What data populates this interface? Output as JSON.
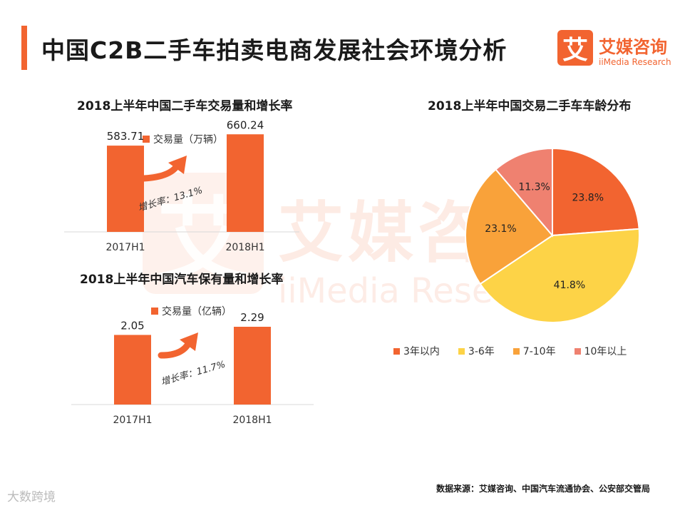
{
  "header": {
    "title": "中国C2B二手车拍卖电商发展社会环境分析",
    "logo_mark": "艾",
    "logo_cn": "艾媒咨询",
    "logo_en": "iiMedia Research"
  },
  "watermark": {
    "mark": "艾",
    "cn": "艾媒咨",
    "en": "iiMedia Research"
  },
  "footer": {
    "source": "数据来源：艾媒咨询、中国汽车流通协会、公安部交管局",
    "brand": "大数跨境"
  },
  "colors": {
    "accent": "#f26430",
    "yellow": "#fdd347",
    "amber": "#f9a23a",
    "salmon": "#ef8170"
  },
  "chart_data": [
    {
      "type": "bar",
      "title": "2018上半年中国二手车交易量和增长率",
      "legend": "交易量（万辆）",
      "categories": [
        "2017H1",
        "2018H1"
      ],
      "values": [
        583.71,
        660.24
      ],
      "value_labels": [
        "583.71",
        "660.24"
      ],
      "annotation": "增长率：13.1%",
      "ylim": [
        0,
        700
      ]
    },
    {
      "type": "bar",
      "title": "2018上半年中国汽车保有量和增长率",
      "legend": "交易量（亿辆）",
      "categories": [
        "2017H1",
        "2018H1"
      ],
      "values": [
        2.05,
        2.29
      ],
      "value_labels": [
        "2.05",
        "2.29"
      ],
      "annotation": "增长率：11.7%",
      "ylim": [
        0,
        2.5
      ]
    },
    {
      "type": "pie",
      "title": "2018上半年中国交易二手车车龄分布",
      "labels": [
        "3年以内",
        "3-6年",
        "7-10年",
        "10年以上"
      ],
      "values": [
        23.8,
        41.8,
        23.1,
        11.3
      ],
      "value_labels": [
        "23.8%",
        "41.8%",
        "23.1%",
        "11.3%"
      ],
      "colors": [
        "#f26430",
        "#fdd347",
        "#f9a23a",
        "#ef8170"
      ],
      "legend_position": "bottom"
    }
  ]
}
